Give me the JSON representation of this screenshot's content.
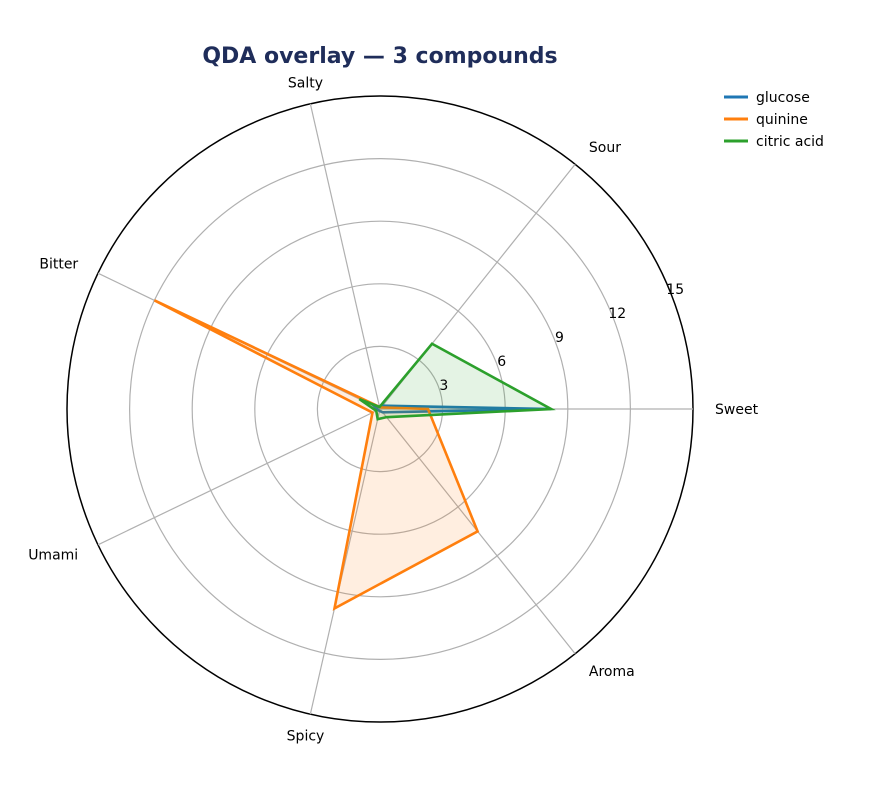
{
  "chart_data": {
    "type": "radar",
    "title": "QDA overlay — 3 compounds",
    "axes": [
      "Sweet",
      "Sour",
      "Salty",
      "Bitter",
      "Umami",
      "Spicy",
      "Aroma"
    ],
    "rlim": [
      0,
      15
    ],
    "r_ticks": [
      3,
      6,
      9,
      12,
      15
    ],
    "grid": true,
    "legend_position": "top-right",
    "series": [
      {
        "name": "glucose",
        "color": "#1f77b4",
        "values": [
          8.2,
          0.2,
          0.1,
          0.3,
          0.1,
          0.1,
          0.2
        ],
        "fill": false
      },
      {
        "name": "quinine",
        "color": "#ff7f0e",
        "values": [
          2.3,
          0.1,
          0.1,
          12.0,
          0.4,
          9.8,
          7.5
        ],
        "fill": true
      },
      {
        "name": "citric acid",
        "color": "#2ca02c",
        "values": [
          8.2,
          4.0,
          0.1,
          1.1,
          0.2,
          0.5,
          0.5
        ],
        "fill": true
      }
    ]
  }
}
